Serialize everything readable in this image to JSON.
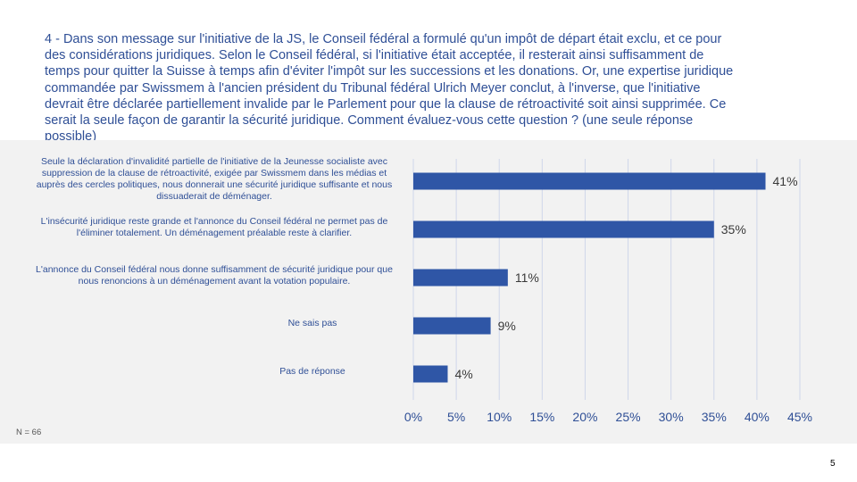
{
  "question": "4 - Dans son message sur l'initiative de la JS, le Conseil fédéral a formulé qu'un impôt de départ était exclu, et ce pour des considérations juridiques. Selon le Conseil fédéral, si l'initiative était acceptée, il resterait ainsi suffisamment de temps pour quitter la Suisse à temps afin d'éviter l'impôt sur les successions et les donations. Or, une expertise juridique commandée par Swissmem à l'ancien président du Tribunal fédéral Ulrich Meyer conclut, à l'inverse, que l'initiative devrait être déclarée partiellement invalide par le Parlement pour que la clause de rétroactivité soit ainsi supprimée. Ce serait la seule façon de garantir la sécurité juridique. Comment évaluez-vous cette question ? (une seule réponse possible)",
  "sample_size": "N = 66",
  "page_number": "5",
  "colors": {
    "bar": "#2f56a6",
    "text": "#2f4f96",
    "grid": "#cfd6ea",
    "panel": "#f2f2f2"
  },
  "chart_data": {
    "type": "bar",
    "orientation": "horizontal",
    "categories": [
      "Seule la déclaration d'invalidité partielle de l'initiative de la Jeunesse socialiste avec suppression de la clause de rétroactivité, exigée par Swissmem dans les médias et auprès des cercles politiques, nous donnerait une sécurité juridique suffisante et nous dissuaderait de déménager.",
      "L'insécurité juridique reste grande et l'annonce du Conseil fédéral ne permet pas de l'éliminer totalement. Un déménagement préalable reste à clarifier.",
      "L'annonce du Conseil fédéral nous donne suffisamment de sécurité juridique pour que nous renoncions à un déménagement avant la votation populaire.",
      "Ne sais pas",
      "Pas de réponse"
    ],
    "values": [
      41,
      35,
      11,
      9,
      4
    ],
    "value_labels": [
      "41%",
      "35%",
      "11%",
      "9%",
      "4%"
    ],
    "xlim": [
      0,
      45
    ],
    "xticks": [
      "0%",
      "5%",
      "10%",
      "15%",
      "20%",
      "25%",
      "30%",
      "35%",
      "40%",
      "45%"
    ],
    "grid": "vertical",
    "xlabel": "",
    "ylabel": ""
  }
}
